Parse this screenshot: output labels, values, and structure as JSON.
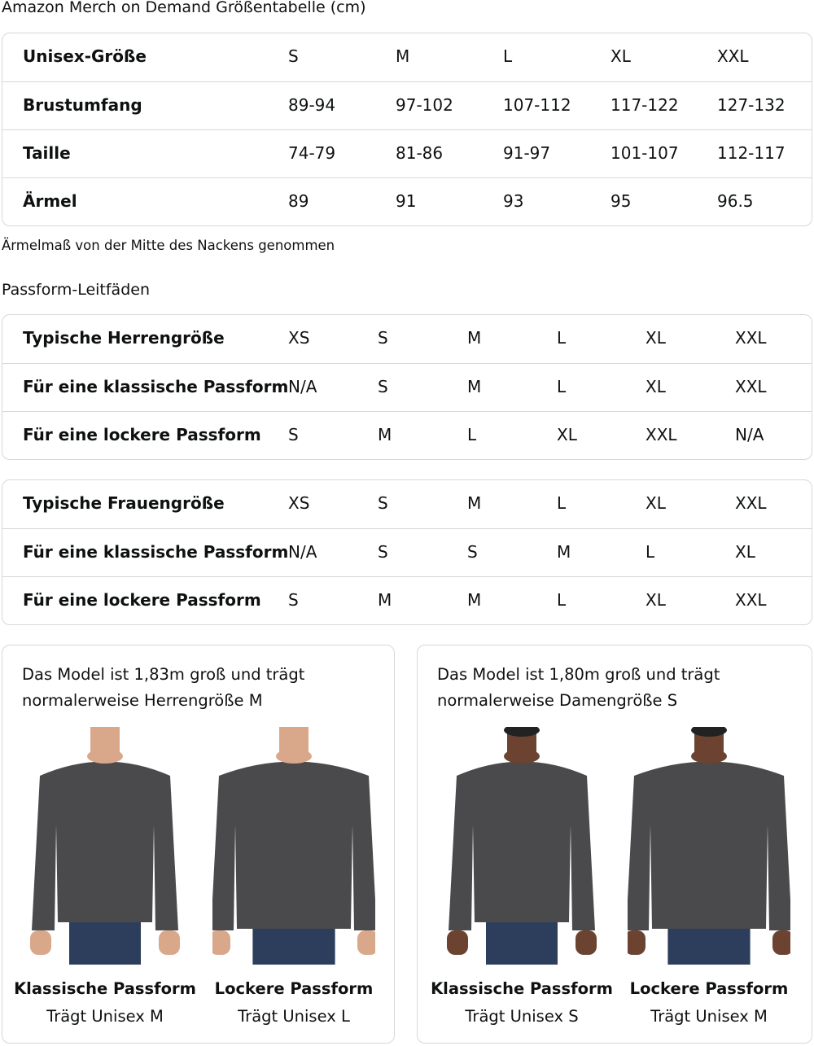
{
  "title": "Amazon Merch on Demand Größentabelle (cm)",
  "size_table": {
    "columns": [
      100,
      232,
      364,
      496,
      627
    ],
    "rows": [
      [
        "Unisex-Größe",
        "S",
        "M",
        "L",
        "XL",
        "XXL"
      ],
      [
        "Brustumfang",
        "89-94",
        "97-102",
        "107-112",
        "117-122",
        "127-132"
      ],
      [
        "Taille",
        "74-79",
        "81-86",
        "91-97",
        "101-107",
        "112-117"
      ],
      [
        "Ärmel",
        "89",
        "91",
        "93",
        "95",
        "96.5"
      ]
    ]
  },
  "note": "Ärmelmaß von der Mitte des Nackens genommen",
  "fit_title": "Passform-Leitfäden",
  "men_table": [
    [
      "Typische Herrengröße",
      "XS",
      "S",
      "M",
      "L",
      "XL",
      "XXL"
    ],
    [
      "Für eine klassische Passform",
      "N/A",
      "S",
      "M",
      "L",
      "XL",
      "XXL"
    ],
    [
      "Für eine lockere Passform",
      "S",
      "M",
      "L",
      "XL",
      "XXL",
      "N/A"
    ]
  ],
  "women_table": [
    [
      "Typische Frauengröße",
      "XS",
      "S",
      "M",
      "L",
      "XL",
      "XXL"
    ],
    [
      "Für eine klassische Passform",
      "N/A",
      "S",
      "S",
      "M",
      "L",
      "XL"
    ],
    [
      "Für eine lockere Passform",
      "S",
      "M",
      "M",
      "L",
      "XL",
      "XXL"
    ]
  ],
  "cards": [
    {
      "desc1": "Das Model ist 1,83m groß und trägt",
      "desc2": "normalerweise Herrengröße M",
      "figures": [
        {
          "title": "Klassische Passform",
          "sub": "Trägt Unisex M"
        },
        {
          "title": "Lockere Passform",
          "sub": "Trägt Unisex L"
        }
      ]
    },
    {
      "desc1": "Das Model ist 1,80m groß und trägt",
      "desc2": "normalerweise Damengröße S",
      "figures": [
        {
          "title": "Klassische Passform",
          "sub": "Trägt Unisex S"
        },
        {
          "title": "Lockere Passform",
          "sub": "Trägt Unisex M"
        }
      ]
    }
  ],
  "colors": {
    "border": "#d5d9d9",
    "sweater": "#4a4a4c",
    "jeans": "#2c3e5c",
    "skin_men": "#d9a88a",
    "skin_women": "#6b4330"
  }
}
